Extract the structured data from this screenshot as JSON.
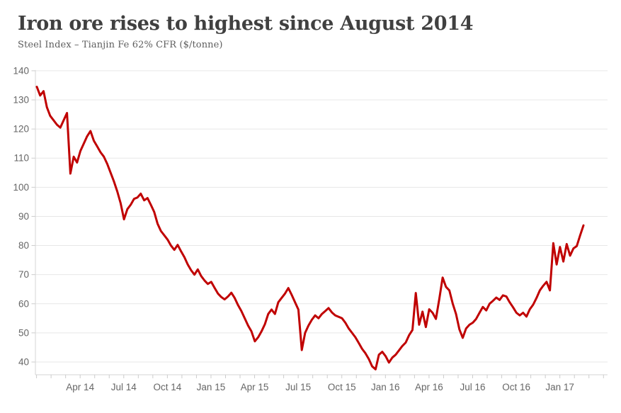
{
  "header": {
    "title": "Iron ore rises to highest since August 2014",
    "subtitle": "Steel Index – Tianjin Fe 62% CFR ($/tonne)"
  },
  "chart_data": {
    "type": "line",
    "title": "Iron ore rises to highest since August 2014",
    "subtitle": "Steel Index – Tianjin Fe 62% CFR ($/tonne)",
    "xlabel": "",
    "ylabel": "$/tonne",
    "x_tick_labels": [
      "Apr 14",
      "Jul 14",
      "Oct 14",
      "Jan 15",
      "Apr 15",
      "Jul 15",
      "Oct 15",
      "Jan 16",
      "Apr 16",
      "Jul 16",
      "Oct 16",
      "Jan 17"
    ],
    "x_minor_ticks": "monthly",
    "y_ticks": [
      40,
      50,
      60,
      70,
      80,
      90,
      100,
      110,
      120,
      130,
      140
    ],
    "ylim": [
      35.6,
      140
    ],
    "grid": "horizontal-only",
    "legend": "none",
    "series": [
      {
        "name": "Steel Index – Tianjin Fe 62% CFR ($/tonne)",
        "color": "#c00000",
        "start": "Jan 2014",
        "end": "Feb 2017",
        "interval": "weekly",
        "values": [
          134.5,
          131.5,
          133.0,
          127.5,
          124.5,
          123.0,
          121.5,
          120.5,
          123.0,
          125.5,
          104.7,
          110.5,
          108.5,
          112.5,
          115.0,
          117.5,
          119.3,
          116.0,
          114.0,
          112.0,
          110.5,
          108.0,
          105.0,
          102.0,
          98.5,
          94.5,
          89.0,
          92.5,
          94.0,
          96.0,
          96.5,
          97.8,
          95.5,
          96.3,
          94.0,
          91.5,
          87.5,
          85.0,
          83.5,
          82.0,
          80.0,
          78.5,
          80.2,
          78.0,
          76.0,
          73.5,
          71.5,
          70.0,
          71.8,
          69.5,
          68.0,
          66.8,
          67.5,
          65.5,
          63.5,
          62.3,
          61.5,
          62.5,
          63.8,
          62.0,
          59.5,
          57.5,
          55.0,
          52.5,
          50.5,
          47.1,
          48.5,
          50.5,
          53.0,
          56.5,
          58.0,
          56.5,
          60.5,
          62.0,
          63.5,
          65.4,
          63.0,
          60.5,
          58.0,
          44.1,
          50.0,
          52.5,
          54.5,
          56.0,
          55.0,
          56.5,
          57.5,
          58.5,
          57.0,
          56.0,
          55.5,
          55.0,
          53.5,
          51.5,
          50.0,
          48.5,
          46.5,
          44.5,
          43.0,
          41.0,
          38.5,
          37.5,
          42.5,
          43.5,
          42.0,
          39.8,
          41.5,
          42.5,
          44.0,
          45.5,
          46.7,
          49.2,
          51.0,
          63.7,
          52.8,
          57.3,
          52.0,
          58.1,
          56.9,
          54.8,
          61.5,
          69.0,
          65.8,
          64.6,
          60.1,
          56.5,
          51.2,
          48.3,
          51.5,
          52.8,
          53.5,
          54.8,
          56.9,
          58.9,
          57.7,
          60.0,
          61.0,
          62.1,
          61.3,
          62.9,
          62.5,
          60.5,
          58.8,
          56.9,
          56.0,
          56.9,
          55.6,
          58.1,
          59.7,
          62.0,
          64.6,
          66.2,
          67.5,
          64.6,
          80.8,
          73.5,
          79.5,
          74.5,
          80.5,
          76.5,
          79.0,
          79.8,
          83.5,
          86.9
        ]
      }
    ],
    "colors": {
      "line": "#c00000",
      "grid": "#e7e7e7",
      "axis": "#d6d6d6",
      "tick": "#cccccc",
      "tick_label": "#666666",
      "title": "#404040",
      "subtitle": "#5e5e5e",
      "background": "#ffffff"
    }
  }
}
